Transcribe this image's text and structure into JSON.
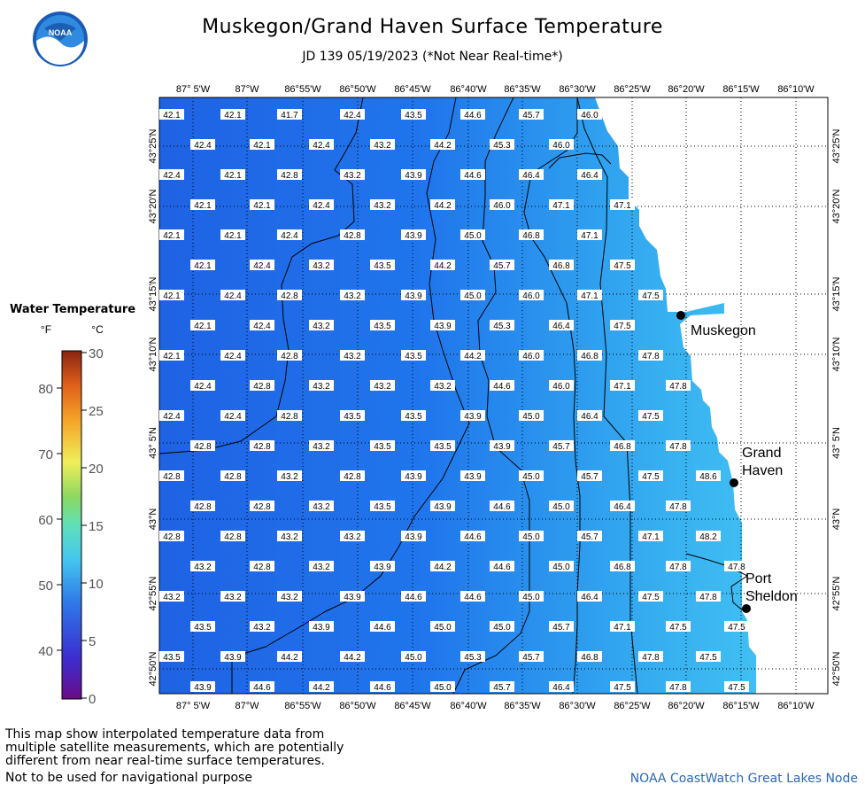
{
  "header": {
    "title": "Muskegon/Grand Haven Surface Temperature",
    "subtitle": "JD 139 05/19/2023 (*Not Near Real-time*)",
    "logo_text": "NOAA"
  },
  "axes": {
    "lon_labels": [
      "87° 5'W",
      "87°W",
      "86°55'W",
      "86°50'W",
      "86°45'W",
      "86°40'W",
      "86°35'W",
      "86°30'W",
      "86°25'W",
      "86°20'W",
      "86°15'W",
      "86°10'W"
    ],
    "lat_labels": [
      "43°25'N",
      "43°20'N",
      "43°15'N",
      "43°10'N",
      "43° 5'N",
      "43°N",
      "42°55'N",
      "42°50'N"
    ]
  },
  "places": [
    {
      "name": "Muskegon",
      "label_lines": [
        "Muskegon"
      ]
    },
    {
      "name": "Grand Haven",
      "label_lines": [
        "Grand",
        "Haven"
      ]
    },
    {
      "name": "Port Sheldon",
      "label_lines": [
        "Port",
        "Sheldon"
      ]
    }
  ],
  "temperature_rows": [
    [
      "42.1",
      "42.1",
      "41.7",
      "42.4",
      "43.5",
      "44.6",
      "45.7",
      "46.0"
    ],
    [
      "42.4",
      "42.1",
      "42.4",
      "43.2",
      "44.2",
      "45.3",
      "46.0"
    ],
    [
      "42.4",
      "42.1",
      "42.8",
      "43.2",
      "43.9",
      "44.6",
      "46.4",
      "46.4"
    ],
    [
      "42.1",
      "42.1",
      "42.4",
      "43.2",
      "44.2",
      "46.0",
      "47.1",
      "47.1"
    ],
    [
      "42.1",
      "42.1",
      "42.4",
      "42.8",
      "43.9",
      "45.0",
      "46.8",
      "47.1"
    ],
    [
      "42.1",
      "42.4",
      "43.2",
      "43.5",
      "44.2",
      "45.7",
      "46.8",
      "47.5"
    ],
    [
      "42.1",
      "42.4",
      "42.8",
      "43.2",
      "43.9",
      "45.0",
      "46.0",
      "47.1",
      "47.5"
    ],
    [
      "42.1",
      "42.4",
      "43.2",
      "43.5",
      "43.9",
      "45.3",
      "46.4",
      "47.5"
    ],
    [
      "42.1",
      "42.4",
      "42.8",
      "43.2",
      "43.5",
      "44.2",
      "46.0",
      "46.8",
      "47.8"
    ],
    [
      "42.4",
      "42.8",
      "43.2",
      "43.2",
      "43.2",
      "44.6",
      "46.0",
      "47.1",
      "47.8"
    ],
    [
      "42.4",
      "42.4",
      "42.8",
      "43.5",
      "43.5",
      "43.9",
      "45.0",
      "46.4",
      "47.5"
    ],
    [
      "42.8",
      "42.8",
      "43.2",
      "43.5",
      "43.5",
      "43.9",
      "45.7",
      "46.8",
      "47.8"
    ],
    [
      "42.8",
      "42.8",
      "43.2",
      "42.8",
      "43.9",
      "43.9",
      "45.0",
      "45.7",
      "47.5",
      "48.6"
    ],
    [
      "42.8",
      "42.8",
      "43.2",
      "43.5",
      "43.9",
      "44.6",
      "45.0",
      "46.4",
      "47.8"
    ],
    [
      "42.8",
      "42.8",
      "43.2",
      "43.2",
      "43.9",
      "44.6",
      "45.0",
      "45.7",
      "47.1",
      "48.2"
    ],
    [
      "43.2",
      "42.8",
      "43.2",
      "43.9",
      "44.2",
      "44.6",
      "45.0",
      "46.8",
      "47.8",
      "47.8"
    ],
    [
      "43.2",
      "43.2",
      "43.2",
      "43.9",
      "44.6",
      "44.6",
      "45.0",
      "46.4",
      "47.5",
      "47.8"
    ],
    [
      "43.5",
      "43.2",
      "43.9",
      "44.6",
      "45.0",
      "45.0",
      "45.7",
      "47.1",
      "47.5",
      "47.5"
    ],
    [
      "43.5",
      "43.9",
      "44.2",
      "44.2",
      "45.0",
      "45.3",
      "45.7",
      "46.8",
      "47.8",
      "47.5"
    ],
    [
      "43.9",
      "44.6",
      "44.2",
      "44.6",
      "45.0",
      "45.7",
      "46.4",
      "47.5",
      "47.8",
      "47.5"
    ]
  ],
  "legend": {
    "title": "Water Temperature",
    "unit_f": "°F",
    "unit_c": "°C",
    "f_ticks": [
      "80",
      "70",
      "60",
      "50",
      "40"
    ],
    "c_ticks": [
      "30",
      "25",
      "20",
      "15",
      "10",
      "5",
      "0"
    ]
  },
  "footer": {
    "disclaimer_lines": [
      "This map show interpolated temperature data from",
      "multiple satellite measurements, which are potentially",
      "different from near real-time surface temperatures."
    ],
    "nav_note": "Not to be used for navigational purpose",
    "credit": "NOAA CoastWatch Great Lakes Node"
  }
}
